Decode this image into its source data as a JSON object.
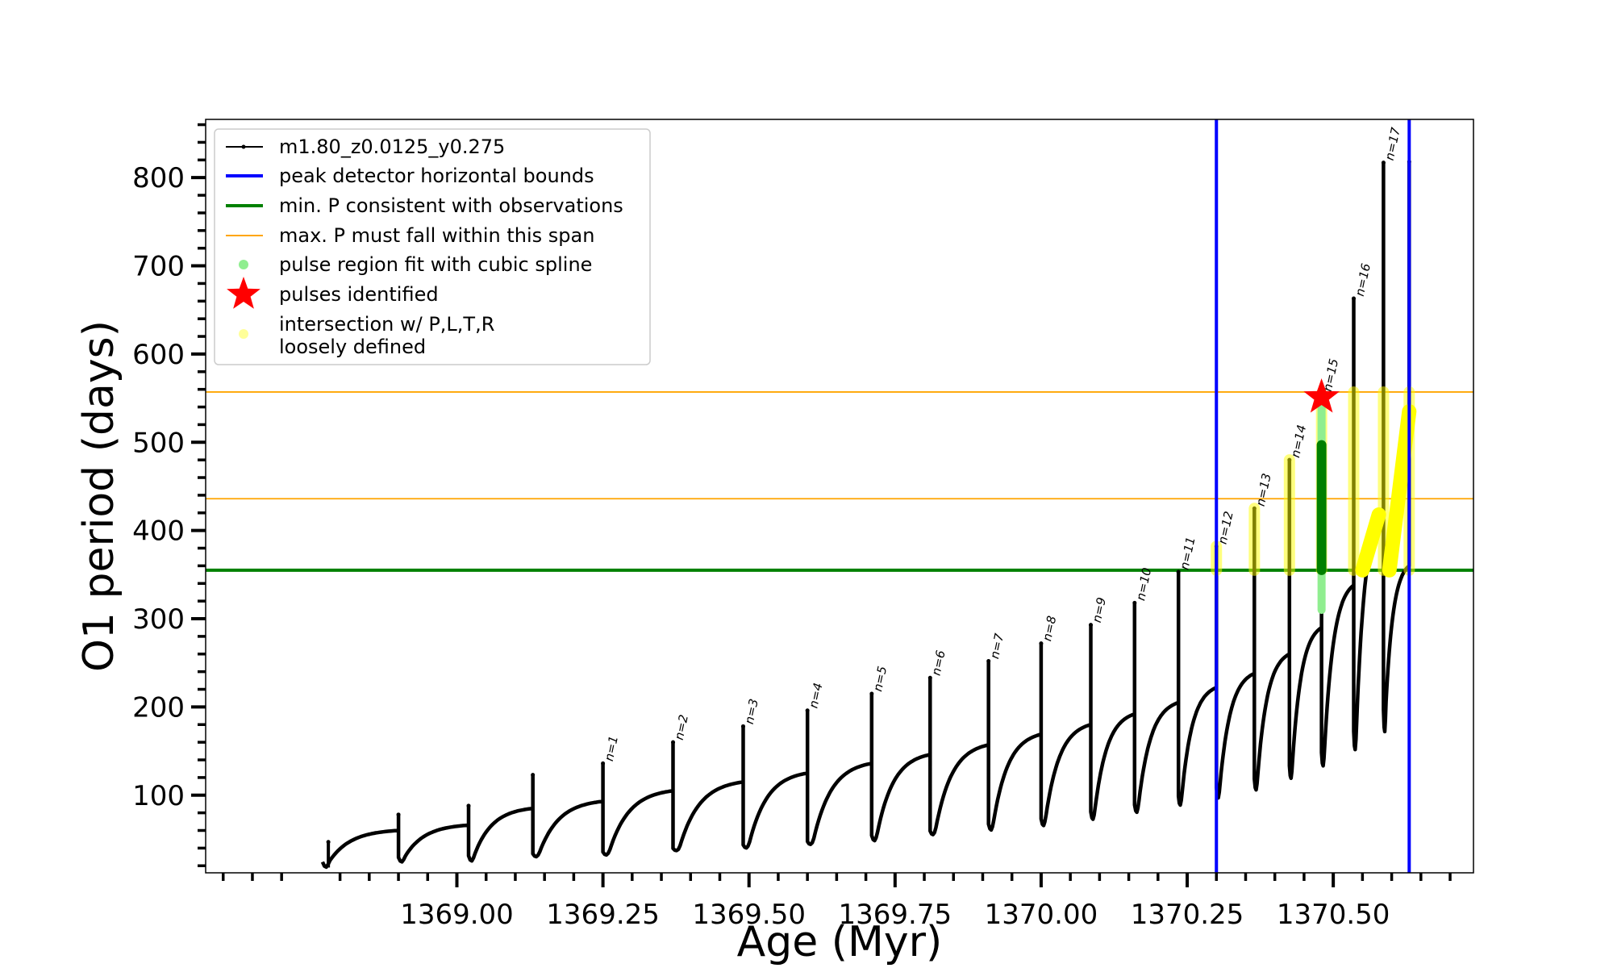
{
  "chart_data": {
    "type": "line",
    "xlabel": "Age (Myr)",
    "ylabel": "O1 period (days)",
    "xlim": [
      1368.57,
      1370.74
    ],
    "ylim": [
      12,
      866
    ],
    "x_ticks": [
      {
        "value": 1369.0,
        "label": "1369.00"
      },
      {
        "value": 1369.25,
        "label": "1369.25"
      },
      {
        "value": 1369.5,
        "label": "1369.50"
      },
      {
        "value": 1369.75,
        "label": "1369.75"
      },
      {
        "value": 1370.0,
        "label": "1370.00"
      },
      {
        "value": 1370.25,
        "label": "1370.25"
      },
      {
        "value": 1370.5,
        "label": "1370.50"
      }
    ],
    "y_ticks": [
      {
        "value": 100,
        "label": "100"
      },
      {
        "value": 200,
        "label": "200"
      },
      {
        "value": 300,
        "label": "300"
      },
      {
        "value": 400,
        "label": "400"
      },
      {
        "value": 500,
        "label": "500"
      },
      {
        "value": 600,
        "label": "600"
      },
      {
        "value": 700,
        "label": "700"
      },
      {
        "value": 800,
        "label": "800"
      }
    ],
    "grid": false,
    "legend_position": "top-left",
    "legend": [
      {
        "label": "m1.80_z0.0125_y0.275",
        "kind": "line-dot",
        "color": "#000000"
      },
      {
        "label": "peak detector horizontal bounds",
        "kind": "line",
        "color": "#0000ff"
      },
      {
        "label": "min. P consistent with observations",
        "kind": "line",
        "color": "#008000"
      },
      {
        "label": "max. P must fall within this span",
        "kind": "thin-line",
        "color": "#ffa500"
      },
      {
        "label": "pulse region fit with cubic spline",
        "kind": "dot",
        "color": "#90ee90"
      },
      {
        "label": "pulses identified",
        "kind": "star",
        "color": "#ff0000"
      },
      {
        "label": "intersection w/ P,L,T,R",
        "label2": "loosely defined",
        "kind": "dot",
        "color": "#ffff99"
      }
    ],
    "series": [
      {
        "name": "m1.80_z0.0125_y0.275",
        "color": "#000000",
        "cycles": [
          {
            "start": 1368.77,
            "low": 18,
            "base": 25,
            "high": 60,
            "end": 1368.9
          },
          {
            "start": 1368.9,
            "low": 24,
            "base": 30,
            "high": 66,
            "end": 1369.02
          },
          {
            "start": 1369.02,
            "low": 25,
            "base": 32,
            "high": 85,
            "end": 1369.13
          },
          {
            "start": 1369.13,
            "low": 30,
            "base": 34,
            "high": 93,
            "end": 1369.25
          },
          {
            "start": 1369.25,
            "low": 32,
            "base": 36,
            "high": 105,
            "end": 1369.37
          },
          {
            "start": 1369.37,
            "low": 37,
            "base": 40,
            "high": 115,
            "end": 1369.49
          },
          {
            "start": 1369.49,
            "low": 40,
            "base": 44,
            "high": 125,
            "end": 1369.6
          },
          {
            "start": 1369.6,
            "low": 44,
            "base": 48,
            "high": 136,
            "end": 1369.71
          },
          {
            "start": 1369.71,
            "low": 48,
            "base": 55,
            "high": 146,
            "end": 1369.81
          },
          {
            "start": 1369.81,
            "low": 55,
            "base": 60,
            "high": 157,
            "end": 1369.91
          },
          {
            "start": 1369.91,
            "low": 60,
            "base": 68,
            "high": 169,
            "end": 1370.0
          },
          {
            "start": 1370.0,
            "low": 65,
            "base": 74,
            "high": 180,
            "end": 1370.085
          },
          {
            "start": 1370.085,
            "low": 72,
            "base": 82,
            "high": 192,
            "end": 1370.16
          },
          {
            "start": 1370.16,
            "low": 80,
            "base": 90,
            "high": 205,
            "end": 1370.235
          },
          {
            "start": 1370.235,
            "low": 88,
            "base": 100,
            "high": 222,
            "end": 1370.3
          },
          {
            "start": 1370.3,
            "low": 96,
            "base": 110,
            "high": 238,
            "end": 1370.365
          },
          {
            "start": 1370.365,
            "low": 105,
            "base": 120,
            "high": 260,
            "end": 1370.425
          },
          {
            "start": 1370.425,
            "low": 118,
            "base": 135,
            "high": 290,
            "end": 1370.48
          },
          {
            "start": 1370.48,
            "low": 132,
            "base": 150,
            "high": 338,
            "end": 1370.535
          },
          {
            "start": 1370.535,
            "low": 150,
            "base": 175,
            "high": 420,
            "end": 1370.586
          },
          {
            "start": 1370.586,
            "low": 170,
            "base": 200,
            "high": 360,
            "end": 1370.63
          }
        ],
        "pulse_peaks": [
          {
            "x": 1368.78,
            "y": 47,
            "label": ""
          },
          {
            "x": 1368.9,
            "y": 78,
            "label": ""
          },
          {
            "x": 1369.02,
            "y": 88,
            "label": ""
          },
          {
            "x": 1369.13,
            "y": 123,
            "label": ""
          },
          {
            "x": 1369.25,
            "y": 136,
            "label": "n=1"
          },
          {
            "x": 1369.37,
            "y": 160,
            "label": "n=2"
          },
          {
            "x": 1369.49,
            "y": 178,
            "label": "n=3"
          },
          {
            "x": 1369.6,
            "y": 196,
            "label": "n=4"
          },
          {
            "x": 1369.71,
            "y": 215,
            "label": "n=5"
          },
          {
            "x": 1369.81,
            "y": 233,
            "label": "n=6"
          },
          {
            "x": 1369.91,
            "y": 252,
            "label": "n=7"
          },
          {
            "x": 1370.0,
            "y": 272,
            "label": "n=8"
          },
          {
            "x": 1370.085,
            "y": 293,
            "label": "n=9"
          },
          {
            "x": 1370.16,
            "y": 318,
            "label": "n=10"
          },
          {
            "x": 1370.235,
            "y": 353,
            "label": "n=11"
          },
          {
            "x": 1370.3,
            "y": 382,
            "label": "n=12"
          },
          {
            "x": 1370.365,
            "y": 425,
            "label": "n=13"
          },
          {
            "x": 1370.425,
            "y": 480,
            "label": "n=14"
          },
          {
            "x": 1370.48,
            "y": 555,
            "label": "n=15"
          },
          {
            "x": 1370.535,
            "y": 663,
            "label": "n=16"
          },
          {
            "x": 1370.586,
            "y": 817,
            "label": "n=17"
          },
          {
            "x": 1370.63,
            "y": 818,
            "label": ""
          }
        ]
      }
    ],
    "vertical_lines": {
      "color": "#0000ff",
      "x": [
        1370.3,
        1370.63
      ]
    },
    "min_period_line": {
      "color": "#008000",
      "y": 355
    },
    "max_period_span": {
      "color": "#ffa500",
      "y": [
        436,
        557
      ]
    },
    "spline_region": {
      "color": "#90ee90",
      "x": 1370.48,
      "y_range": [
        310,
        555
      ]
    },
    "pulse_identified": {
      "color": "#ff0000",
      "x": 1370.48,
      "y": 551
    },
    "green_fill": {
      "color": "#008000",
      "x": 1370.48,
      "y_range": [
        355,
        497
      ]
    },
    "intersections": {
      "color": "#ffff00",
      "spikes": [
        {
          "x": 1370.3,
          "y_range": [
            355,
            382
          ]
        },
        {
          "x": 1370.365,
          "y_range": [
            355,
            425
          ]
        },
        {
          "x": 1370.425,
          "y_range": [
            355,
            480
          ]
        },
        {
          "x": 1370.48,
          "y_range": [
            355,
            555
          ]
        },
        {
          "x": 1370.535,
          "y_range": [
            355,
            557
          ]
        },
        {
          "x": 1370.586,
          "y_range": [
            355,
            557
          ]
        },
        {
          "x": 1370.63,
          "y_range": [
            355,
            557
          ]
        }
      ],
      "rise_segments": [
        {
          "x": [
            1370.55,
            1370.578
          ],
          "y": [
            355,
            418
          ]
        },
        {
          "x": [
            1370.596,
            1370.63
          ],
          "y": [
            355,
            535
          ]
        }
      ]
    }
  }
}
